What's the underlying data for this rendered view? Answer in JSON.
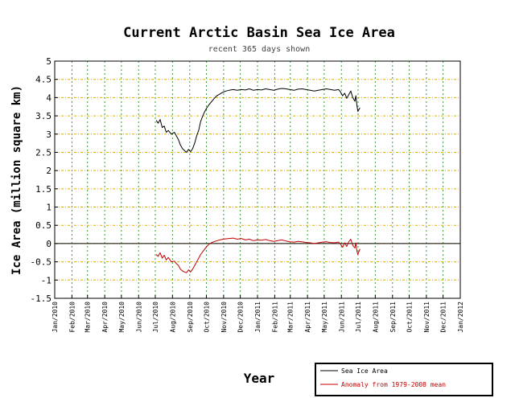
{
  "chart_data": {
    "type": "line",
    "title": "Current Arctic Basin Sea Ice Area",
    "subtitle": "recent 365 days shown",
    "xlabel": "Year",
    "ylabel": "Ice Area (million square km)",
    "ylim": [
      -1.5,
      5
    ],
    "yticks": [
      5,
      4.5,
      4,
      3.5,
      3,
      2.5,
      2,
      1.5,
      1,
      0.5,
      0,
      -0.5,
      -1,
      -1.5
    ],
    "ytick_labels": [
      "5",
      "4.5",
      "4",
      "3.5",
      "3",
      "2.5",
      "2",
      "1.5",
      "1",
      "0.5",
      "0",
      "-0.5",
      "-1",
      "-1.5"
    ],
    "xlim": [
      2010.0,
      2012.0
    ],
    "xticks": [
      2010.0,
      2010.0849,
      2010.1616,
      2010.2466,
      2010.3288,
      2010.4137,
      2010.4959,
      2010.5808,
      2010.6658,
      2010.7479,
      2010.8329,
      2010.9151,
      2011.0,
      2011.0849,
      2011.1616,
      2011.2466,
      2011.3288,
      2011.4137,
      2011.4959,
      2011.5808,
      2011.6658,
      2011.7479,
      2011.8329,
      2011.9151,
      2012.0
    ],
    "xtick_labels": [
      "Jan/2010",
      "Feb/2010",
      "Mar/2010",
      "Apr/2010",
      "May/2010",
      "Jun/2010",
      "Jul/2010",
      "Aug/2010",
      "Sep/2010",
      "Oct/2010",
      "Nov/2010",
      "Dec/2010",
      "Jan/2011",
      "Feb/2011",
      "Mar/2011",
      "Apr/2011",
      "May/2011",
      "Jun/2011",
      "Jul/2011",
      "Aug/2011",
      "Sep/2011",
      "Oct/2011",
      "Nov/2011",
      "Dec/2011",
      "Jan/2012"
    ],
    "grid": true,
    "zero_line": true,
    "legend_position": "bottom-right",
    "series": [
      {
        "name": "Sea Ice Area",
        "color": "#000000",
        "x": [
          2010.5,
          2010.51,
          2010.52,
          2010.53,
          2010.54,
          2010.55,
          2010.56,
          2010.575,
          2010.59,
          2010.6,
          2010.61,
          2010.62,
          2010.63,
          2010.64,
          2010.65,
          2010.66,
          2010.67,
          2010.68,
          2010.69,
          2010.7,
          2010.71,
          2010.72,
          2010.73,
          2010.74,
          2010.75,
          2010.76,
          2010.775,
          2010.79,
          2010.8,
          2010.815,
          2010.83,
          2010.845,
          2010.86,
          2010.88,
          2010.9,
          2010.92,
          2010.94,
          2010.96,
          2010.98,
          2011.0,
          2011.02,
          2011.04,
          2011.06,
          2011.08,
          2011.1,
          2011.12,
          2011.14,
          2011.16,
          2011.18,
          2011.2,
          2011.22,
          2011.24,
          2011.26,
          2011.28,
          2011.3,
          2011.32,
          2011.34,
          2011.36,
          2011.38,
          2011.4,
          2011.41,
          2011.42,
          2011.43,
          2011.44,
          2011.45,
          2011.46,
          2011.47,
          2011.48,
          2011.485,
          2011.49,
          2011.495,
          2011.505
        ],
        "values": [
          3.38,
          3.3,
          3.4,
          3.18,
          3.22,
          3.05,
          3.1,
          3.0,
          3.05,
          2.95,
          2.85,
          2.7,
          2.6,
          2.55,
          2.5,
          2.58,
          2.52,
          2.6,
          2.75,
          2.95,
          3.1,
          3.35,
          3.5,
          3.62,
          3.72,
          3.8,
          3.9,
          4.0,
          4.05,
          4.1,
          4.15,
          4.18,
          4.2,
          4.22,
          4.2,
          4.22,
          4.21,
          4.24,
          4.2,
          4.22,
          4.21,
          4.24,
          4.22,
          4.2,
          4.23,
          4.25,
          4.24,
          4.22,
          4.2,
          4.23,
          4.24,
          4.22,
          4.2,
          4.18,
          4.2,
          4.22,
          4.24,
          4.22,
          4.2,
          4.22,
          4.15,
          4.05,
          4.12,
          3.98,
          4.08,
          4.18,
          4.0,
          3.9,
          4.05,
          3.8,
          3.62,
          3.72
        ]
      },
      {
        "name": "Anomaly from 1979-2008 mean",
        "color": "#c00000",
        "x": [
          2010.5,
          2010.51,
          2010.52,
          2010.53,
          2010.54,
          2010.55,
          2010.56,
          2010.575,
          2010.59,
          2010.6,
          2010.61,
          2010.62,
          2010.63,
          2010.64,
          2010.65,
          2010.66,
          2010.67,
          2010.68,
          2010.69,
          2010.7,
          2010.71,
          2010.72,
          2010.73,
          2010.74,
          2010.75,
          2010.76,
          2010.775,
          2010.79,
          2010.8,
          2010.815,
          2010.83,
          2010.845,
          2010.86,
          2010.88,
          2010.9,
          2010.92,
          2010.94,
          2010.96,
          2010.98,
          2011.0,
          2011.02,
          2011.04,
          2011.06,
          2011.08,
          2011.1,
          2011.12,
          2011.14,
          2011.16,
          2011.18,
          2011.2,
          2011.22,
          2011.24,
          2011.26,
          2011.28,
          2011.3,
          2011.32,
          2011.34,
          2011.36,
          2011.38,
          2011.4,
          2011.41,
          2011.42,
          2011.43,
          2011.44,
          2011.45,
          2011.46,
          2011.47,
          2011.48,
          2011.485,
          2011.49,
          2011.495,
          2011.505
        ],
        "values": [
          -0.3,
          -0.35,
          -0.25,
          -0.4,
          -0.32,
          -0.45,
          -0.38,
          -0.5,
          -0.48,
          -0.55,
          -0.6,
          -0.7,
          -0.75,
          -0.78,
          -0.8,
          -0.72,
          -0.78,
          -0.7,
          -0.6,
          -0.5,
          -0.4,
          -0.3,
          -0.22,
          -0.15,
          -0.08,
          -0.02,
          0.03,
          0.06,
          0.08,
          0.1,
          0.12,
          0.13,
          0.14,
          0.15,
          0.12,
          0.14,
          0.1,
          0.12,
          0.08,
          0.1,
          0.09,
          0.11,
          0.08,
          0.06,
          0.08,
          0.1,
          0.07,
          0.05,
          0.04,
          0.06,
          0.05,
          0.03,
          0.02,
          0.0,
          0.02,
          0.04,
          0.05,
          0.03,
          0.02,
          0.04,
          -0.02,
          -0.1,
          0.02,
          -0.08,
          0.05,
          0.12,
          -0.05,
          -0.12,
          0.02,
          -0.2,
          -0.3,
          -0.15
        ]
      }
    ]
  }
}
